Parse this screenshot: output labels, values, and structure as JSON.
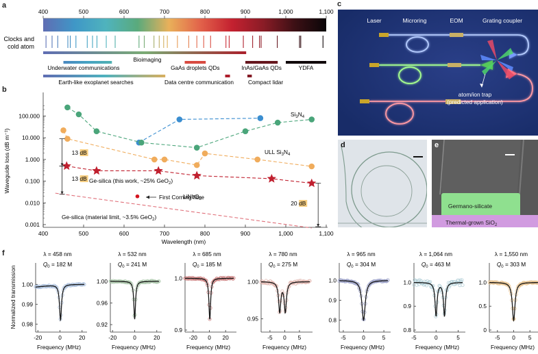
{
  "panel_labels": {
    "a": "a",
    "b": "b",
    "c": "c",
    "d": "d",
    "e": "e",
    "f": "f"
  },
  "panel_a": {
    "axis_ticks": [
      "400",
      "500",
      "600",
      "700",
      "800",
      "900",
      "1,000",
      "1,100"
    ],
    "axis_range_nm": [
      400,
      1100
    ],
    "spectrum_gradient": [
      "#5f6db3",
      "#3f97c7",
      "#4fb3bd",
      "#5aaa7c",
      "#e9b05a",
      "#e2624a",
      "#c42130",
      "#8a1c26",
      "#3c1015",
      "#0a0608"
    ],
    "clocks_label_line1": "Clocks and",
    "clocks_label_line2": "cold atom",
    "clock_lines_nm": [
      407,
      422,
      436,
      461,
      467,
      481,
      509,
      522,
      533,
      556,
      578,
      637,
      650,
      674,
      687,
      698,
      707,
      732,
      760,
      780,
      797,
      814,
      852,
      860,
      895,
      918,
      935,
      939,
      979,
      1034,
      1037,
      1092
    ],
    "applications": [
      {
        "name": "Bioimaging",
        "start": 400,
        "end": 902,
        "row": 0,
        "label_pos": "above"
      },
      {
        "name": "Underwater communications",
        "start": 450,
        "end": 570,
        "row": 1
      },
      {
        "name": "GaAs droplets QDs",
        "start": 750,
        "end": 802,
        "row": 1
      },
      {
        "name": "InAs/GaAs QDs",
        "start": 900,
        "end": 980,
        "row": 1
      },
      {
        "name": "YDFA",
        "start": 1000,
        "end": 1100,
        "row": 1
      },
      {
        "name": "Earth-like exoplanet searches",
        "start": 400,
        "end": 702,
        "row": 2
      },
      {
        "name": "Data centre communication",
        "start": 850,
        "end": 862,
        "row": 2
      },
      {
        "name": "Compact lidar",
        "start": 905,
        "end": 916,
        "row": 2
      }
    ]
  },
  "chart_data": [
    {
      "panel": "b",
      "type": "scatter",
      "title": "",
      "xlabel": "Wavelength (nm)",
      "ylabel": "Waveguide loss (dB m⁻¹)",
      "xlim": [
        400,
        1100
      ],
      "ylim": [
        0.001,
        300
      ],
      "yscale": "log",
      "xticks": [
        "400",
        "500",
        "600",
        "700",
        "800",
        "900",
        "1,000",
        "1,100"
      ],
      "yticks": [
        "0.001",
        "0.010",
        "0.100",
        "1.000",
        "10.000",
        "100.000"
      ],
      "series": [
        {
          "name": "LiNbO3",
          "label": "LiNbO",
          "label_sub": "3",
          "color": "#3b8ed0",
          "marker": "circle",
          "dashed": true,
          "x": [
            637,
            737,
            937
          ],
          "y": [
            6,
            70,
            80
          ]
        },
        {
          "name": "Si3N4",
          "label": "Si",
          "label_sub1": "3",
          "label_mid": "N",
          "label_sub2": "4",
          "color": "#4aa57a",
          "marker": "circle",
          "dashed": true,
          "x": [
            460,
            488,
            532,
            643,
            780,
            900,
            980,
            1064
          ],
          "y": [
            250,
            120,
            20,
            6,
            3.5,
            20,
            50,
            70
          ]
        },
        {
          "name": "ULL Si3N4",
          "label": "ULL Si",
          "color": "#f0ac5c",
          "marker": "circle",
          "dashed": true,
          "x": [
            450,
            460,
            675,
            700,
            780,
            800,
            930,
            1064
          ],
          "y": [
            22,
            9,
            1.0,
            1.0,
            0.55,
            1.9,
            1.0,
            0.48
          ]
        },
        {
          "name": "Ge-silica (this work, ~25% GeO2)",
          "color": "#c0202f",
          "marker": "star",
          "dashed": true,
          "x": [
            458,
            532,
            685,
            780,
            965,
            1064
          ],
          "y": [
            0.5,
            0.3,
            0.3,
            0.18,
            0.13,
            0.08
          ]
        },
        {
          "name": "Ge-silica (material limit, ~3.5% GeO2)",
          "color": "#e0707a",
          "marker": "none",
          "dashed": true,
          "x": [
            430,
            1064
          ],
          "y": [
            0.028,
            0.0007
          ]
        },
        {
          "name": "First Corning fibre",
          "color": "#d4141e",
          "marker": "dot",
          "dashed": false,
          "x": [
            633
          ],
          "y": [
            0.02
          ]
        }
      ],
      "annotations": [
        {
          "text": "13",
          "unit": "dB",
          "x1": 440,
          "y1": 9,
          "y2": 0.5
        },
        {
          "text": "13",
          "unit": "dB",
          "x1": 440,
          "y1": 0.5,
          "y2": 0.025
        },
        {
          "text": "20",
          "unit": "dB",
          "x1": 1080,
          "y1": 0.08,
          "y2": 0.0008
        }
      ],
      "labels": {
        "this_work": "Ge-silica (this work, ~25% GeO",
        "this_work_sub": "2",
        "this_work_end": ")",
        "material_limit": "Ge-silica (material limit, ~3.5% GeO",
        "material_limit_sub": "2",
        "material_limit_end": ")",
        "corning": "First Corning fibre",
        "linbo": "LiNbO",
        "linbo_sub": "3",
        "sin_a": "Si",
        "sin_sub1": "3",
        "sin_b": "N",
        "sin_sub2": "4",
        "ull": "ULL Si",
        "ull_sub1": "3",
        "ull_b": "N",
        "ull_sub2": "4"
      }
    },
    {
      "panel": "f",
      "type": "line",
      "xlabel": "Frequency (MHz)",
      "ylabel": "Normalized transmission",
      "subplots": [
        {
          "lambda": "λ = 458 nm",
          "q": "Q",
          "q_sub": "0",
          "q_val": " = 182 M",
          "color": "#a9bedc",
          "xlim": [
            -22,
            22
          ],
          "xticks": [
            -20,
            0,
            20
          ],
          "ylim": [
            0.977,
            1.007
          ],
          "yticks": [
            "1.00",
            "0.99",
            "0.98"
          ],
          "ytick_vals": [
            1.0,
            0.99,
            0.98
          ],
          "dips": [
            {
              "c": 0.5,
              "w": 2.2,
              "d": 0.018
            }
          ],
          "asym": true
        },
        {
          "lambda": "λ = 532 nm",
          "q": "Q",
          "q_sub": "0",
          "q_val": " = 241 M",
          "color": "#a8c5a8",
          "xlim": [
            -22,
            22
          ],
          "xticks": [
            -20,
            0,
            20
          ],
          "ylim": [
            0.91,
            1.02
          ],
          "yticks": [
            "1.00",
            "0.96",
            "0.92"
          ],
          "ytick_vals": [
            1.0,
            0.96,
            0.92
          ],
          "dips": [
            {
              "c": 0,
              "w": 1.8,
              "d": 0.07
            }
          ]
        },
        {
          "lambda": "λ = 685 nm",
          "q": "Q",
          "q_sub": "0",
          "q_val": " = 185 M",
          "color": "#c97a7a",
          "xlim": [
            -30,
            30
          ],
          "xticks": [
            -20,
            0,
            20
          ],
          "ylim": [
            0.9,
            1.015
          ],
          "yticks": [
            "1.0",
            "0.9"
          ],
          "ytick_vals": [
            1.0,
            0.9
          ],
          "dips": [
            {
              "c": 0.5,
              "w": 2.5,
              "d": 0.08
            }
          ]
        },
        {
          "lambda": "λ = 780 nm",
          "q": "Q",
          "q_sub": "0",
          "q_val": " = 275 M",
          "color": "#dfb1aa",
          "xlim": [
            -8,
            8.5
          ],
          "xticks": [
            -5,
            0,
            5
          ],
          "ylim": [
            0.935,
            1.015
          ],
          "yticks": [
            "1.00",
            "0.95"
          ],
          "ytick_vals": [
            1.0,
            0.95
          ],
          "dips": [
            {
              "c": -1.7,
              "w": 0.9,
              "d": 0.04
            },
            {
              "c": 0.2,
              "w": 0.9,
              "d": 0.04
            }
          ]
        },
        {
          "lambda": "λ = 965 nm",
          "q": "Q",
          "q_sub": "0",
          "q_val": " = 304 M",
          "color": "#9aa0c8",
          "xlim": [
            -6,
            6
          ],
          "xticks": [
            -5,
            0,
            5
          ],
          "ylim": [
            0.75,
            1.05
          ],
          "yticks": [
            "1.0",
            "0.9",
            "0.8"
          ],
          "ytick_vals": [
            1.0,
            0.9,
            0.8
          ],
          "dips": [
            {
              "c": 0,
              "w": 1.0,
              "d": 0.2
            }
          ]
        },
        {
          "lambda": "λ = 1,064 nm",
          "q": "Q",
          "q_sub": "0",
          "q_val": " = 463 M",
          "color": "#a9cad4",
          "xlim": [
            -5,
            6
          ],
          "xticks": [
            -5,
            0,
            5
          ],
          "ylim": [
            0.8,
            1.05
          ],
          "yticks": [
            "1.0",
            "0.9",
            "0.8"
          ],
          "ytick_vals": [
            1.0,
            0.9,
            0.8
          ],
          "dips": [
            {
              "c": 0,
              "w": 0.55,
              "d": 0.14
            },
            {
              "c": 1.9,
              "w": 0.55,
              "d": 0.14
            }
          ]
        },
        {
          "lambda": "λ = 1,550 nm",
          "q": "Q",
          "q_sub": "0",
          "q_val": " = 303 M",
          "color": "#e6c08a",
          "xlim": [
            -7.5,
            7.5
          ],
          "xticks": [
            -5,
            0,
            5
          ],
          "ylim": [
            0,
            1.25
          ],
          "yticks": [
            "1.0",
            "0.5",
            "0"
          ],
          "ytick_vals": [
            1.0,
            0.5,
            0
          ],
          "dips": [
            {
              "c": 0,
              "w": 1.0,
              "d": 0.8
            }
          ]
        }
      ]
    }
  ],
  "panel_c": {
    "labels": [
      "Laser",
      "Microring",
      "EOM",
      "Grating coupler"
    ],
    "trap_line1": "atom/ion trap",
    "trap_line2": "(predicted application)",
    "background": "#1d3474",
    "waveguide_colors": [
      "#a9c6ff",
      "#9bff8a",
      "#ff8a96"
    ]
  },
  "panel_e": {
    "core_label": "Germano-silicate",
    "substrate_label": "Thermal-grown SiO",
    "substrate_sub": "2",
    "core_color": "#8fe08f",
    "substrate_color": "#d19be0"
  }
}
